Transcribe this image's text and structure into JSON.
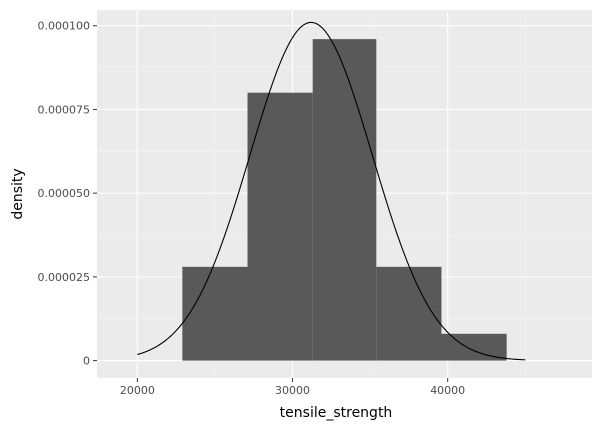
{
  "chart_data": {
    "type": "bar",
    "title": "",
    "xlabel": "tensile_strength",
    "ylabel": "density",
    "xlim": [
      17400,
      49300
    ],
    "ylim": [
      -5.2e-06,
      0.0001047
    ],
    "x_ticks": [
      20000,
      30000,
      40000
    ],
    "x_tick_labels": [
      "20000",
      "30000",
      "40000"
    ],
    "y_ticks": [
      0,
      2.5e-05,
      5e-05,
      7.5e-05,
      0.0001
    ],
    "y_tick_labels": [
      "0",
      "0.000025",
      "0.000050",
      "0.000075",
      "0.000100"
    ],
    "grid": true,
    "legend": "none",
    "colors": {
      "panel": "#ebebeb",
      "grid_major": "#ffffff",
      "grid_minor": "#f5f5f5",
      "bar_fill": "#595959",
      "curve": "#000000",
      "tick_mark": "#333333"
    },
    "bins": [
      {
        "x_start": 22900,
        "x_end": 27100,
        "density": 2.8e-05
      },
      {
        "x_start": 27100,
        "x_end": 31300,
        "density": 8e-05
      },
      {
        "x_start": 31300,
        "x_end": 35400,
        "density": 9.6e-05
      },
      {
        "x_start": 35400,
        "x_end": 39600,
        "density": 2.8e-05
      },
      {
        "x_start": 39600,
        "x_end": 43800,
        "density": 8e-06
      }
    ],
    "density_curve": {
      "type": "normal",
      "mean": 31200,
      "sd": 3950,
      "x_range": [
        20000,
        45000
      ]
    }
  }
}
